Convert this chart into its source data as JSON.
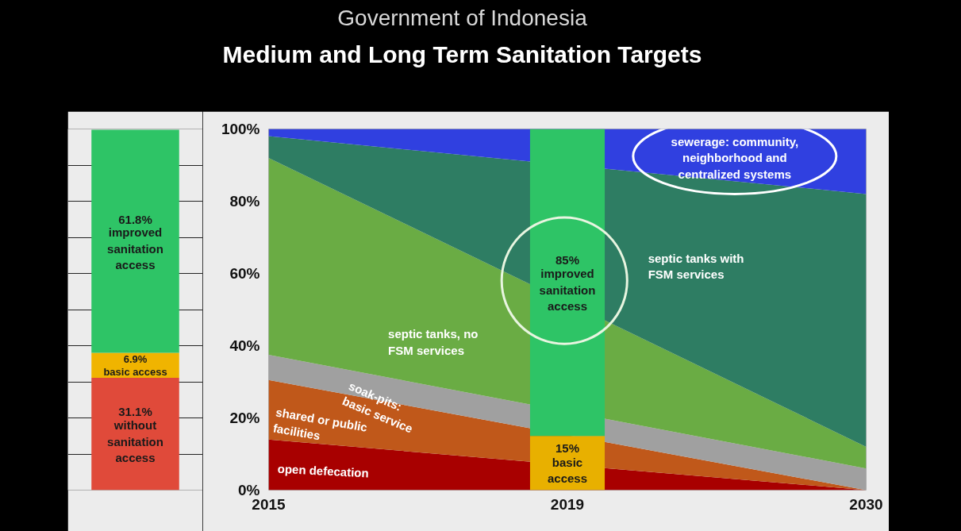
{
  "chart_data": [
    {
      "type": "bar",
      "stacked": true,
      "categories": [
        null
      ],
      "ylim": [
        0,
        100
      ],
      "yticks": [
        {
          "value": 0,
          "label": null
        },
        {
          "value": 10,
          "label": null
        },
        {
          "value": 20,
          "label": null
        },
        {
          "value": 30,
          "label": null
        },
        {
          "value": 40,
          "label": null
        },
        {
          "value": 50,
          "label": null
        },
        {
          "value": 60,
          "label": null
        },
        {
          "value": 70,
          "label": null
        },
        {
          "value": 80,
          "label": null
        },
        {
          "value": 90,
          "label": null
        },
        {
          "value": 100,
          "label": null
        }
      ],
      "tick_labels": false,
      "grid": "y",
      "series": [
        {
          "name": "without sanitation access",
          "color": "#e04a3a",
          "values": [
            31.1
          ],
          "value_labels": [
            "31.1%"
          ]
        },
        {
          "name": "basic access",
          "color": "#f0b400",
          "values": [
            6.9
          ],
          "value_labels": [
            "6.9%"
          ]
        },
        {
          "name": "improved sanitation access",
          "color": "#2ec466",
          "values": [
            61.8
          ],
          "value_labels": [
            "61.8%"
          ]
        }
      ]
    },
    {
      "type": "area",
      "stacked": true,
      "subtitle": "Government of Indonesia",
      "title": "Medium and Long Term Sanitation Targets",
      "categories": [
        "2015",
        "2019",
        "2030"
      ],
      "ylim": [
        0,
        100
      ],
      "yticks": [
        {
          "value": 0,
          "label": "0%"
        },
        {
          "value": 20,
          "label": "20%"
        },
        {
          "value": 40,
          "label": "40%"
        },
        {
          "value": 60,
          "label": "60%"
        },
        {
          "value": 80,
          "label": "80%"
        },
        {
          "value": 100,
          "label": "100%"
        }
      ],
      "grid": false,
      "series": [
        {
          "name": "open defecation",
          "color": "#a80000",
          "values": [
            14,
            null,
            0
          ]
        },
        {
          "name": "shared or public facilities",
          "color": "#c0581a",
          "values": [
            16.5,
            null,
            0
          ]
        },
        {
          "name": "soak-pits: basic service",
          "color": "#a0a0a0",
          "values": [
            7,
            null,
            6
          ]
        },
        {
          "name": "septic tanks, no FSM services",
          "color": "#6aac44",
          "values": [
            54.5,
            null,
            6
          ]
        },
        {
          "name": "septic tanks with FSM services",
          "color": "#2e7d63",
          "values": [
            6,
            null,
            70
          ]
        },
        {
          "name": "sewerage: community, neighborhood and centralized systems",
          "color": "#3040e0",
          "values": [
            2,
            null,
            18
          ]
        }
      ]
    },
    {
      "type": "bar",
      "stacked": true,
      "categories": [
        "2015",
        "2019",
        "2030"
      ],
      "ylim": [
        0,
        100
      ],
      "tick_labels": false,
      "series": [
        {
          "name": "basic access",
          "color": "#e8b000",
          "values": [
            null,
            15,
            null
          ],
          "value_labels": [
            null,
            "15%",
            null
          ]
        },
        {
          "name": "improved sanitation access",
          "color": "#2ec466",
          "values": [
            null,
            85,
            null
          ],
          "value_labels": [
            null,
            "85%",
            null
          ]
        }
      ]
    }
  ]
}
